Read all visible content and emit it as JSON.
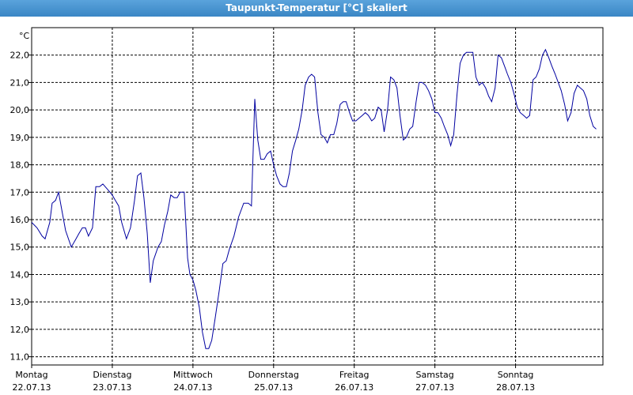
{
  "chart_data": {
    "type": "line",
    "title": "Taupunkt-Temperatur [°C] skaliert",
    "y_label": "°C",
    "xlim": [
      0,
      170
    ],
    "ylim": [
      10.7,
      23.0
    ],
    "xticks": [
      {
        "value": 0,
        "label": "Montag"
      },
      {
        "value": 24,
        "label": "Dienstag"
      },
      {
        "value": 48,
        "label": "Mittwoch"
      },
      {
        "value": 72,
        "label": "Donnerstag"
      },
      {
        "value": 96,
        "label": "Freitag"
      },
      {
        "value": 120,
        "label": "Samstag"
      },
      {
        "value": 144,
        "label": "Sonntag"
      }
    ],
    "xtick_dates": [
      "22.07.13",
      "23.07.13",
      "24.07.13",
      "25.07.13",
      "26.07.13",
      "27.07.13",
      "28.07.13"
    ],
    "yticks": [
      {
        "value": 11,
        "label": "11,0"
      },
      {
        "value": 12,
        "label": "12,0"
      },
      {
        "value": 13,
        "label": "13,0"
      },
      {
        "value": 14,
        "label": "14,0"
      },
      {
        "value": 15,
        "label": "15,0"
      },
      {
        "value": 16,
        "label": "16,0"
      },
      {
        "value": 17,
        "label": "17,0"
      },
      {
        "value": 18,
        "label": "18,0"
      },
      {
        "value": 19,
        "label": "19,0"
      },
      {
        "value": 20,
        "label": "20,0"
      },
      {
        "value": 21,
        "label": "21,0"
      },
      {
        "value": 22,
        "label": "22,0"
      }
    ],
    "grid": true,
    "x": [
      0,
      1.6,
      3.1,
      4.0,
      5.4,
      6.1,
      7.1,
      8.0,
      8.9,
      10.1,
      11.8,
      13.2,
      14.1,
      15.1,
      16.0,
      16.9,
      18.1,
      19.1,
      20.2,
      21.2,
      22.6,
      24.0,
      24.9,
      25.9,
      26.8,
      28.2,
      29.4,
      30.6,
      31.5,
      32.5,
      33.4,
      34.4,
      35.3,
      36.2,
      37.6,
      38.6,
      39.5,
      40.5,
      41.4,
      42.4,
      43.3,
      44.2,
      45.4,
      46.4,
      47.1,
      48.0,
      48.9,
      49.9,
      50.8,
      51.8,
      52.7,
      53.6,
      54.6,
      55.8,
      56.9,
      57.9,
      58.8,
      60.2,
      61.6,
      63.1,
      64.5,
      65.4,
      66.4,
      67.3,
      68.2,
      69.2,
      70.1,
      71.1,
      72.0,
      72.9,
      73.9,
      74.8,
      75.8,
      76.7,
      77.6,
      78.6,
      79.5,
      80.5,
      81.4,
      82.4,
      83.3,
      84.2,
      85.2,
      86.1,
      87.1,
      88.0,
      88.9,
      89.9,
      90.8,
      91.8,
      92.7,
      93.6,
      94.6,
      95.5,
      96.5,
      97.4,
      98.4,
      99.3,
      100.2,
      101.2,
      102.1,
      103.1,
      104.0,
      104.9,
      105.9,
      106.8,
      107.8,
      108.7,
      109.6,
      110.6,
      111.5,
      112.5,
      113.4,
      114.4,
      115.3,
      116.2,
      117.2,
      118.1,
      119.1,
      120.0,
      120.9,
      121.9,
      122.8,
      123.8,
      124.7,
      125.6,
      126.6,
      127.5,
      128.5,
      129.4,
      130.4,
      131.3,
      132.2,
      133.2,
      134.1,
      135.1,
      136.0,
      136.9,
      137.9,
      138.8,
      139.8,
      140.7,
      141.6,
      142.6,
      143.5,
      144.5,
      145.4,
      146.4,
      147.3,
      148.2,
      149.2,
      150.1,
      151.1,
      152.0,
      152.9,
      153.9,
      154.8,
      155.8,
      156.7,
      157.6,
      158.6,
      159.5,
      160.5,
      161.4,
      162.4,
      163.3,
      164.2,
      165.2,
      166.1,
      167.1,
      168.0
    ],
    "series": [
      {
        "name": "Taupunkt-Temperatur",
        "color": "#0000a0",
        "values": [
          15.9,
          15.7,
          15.4,
          15.3,
          15.9,
          16.6,
          16.7,
          17.0,
          16.4,
          15.6,
          15.0,
          15.3,
          15.5,
          15.7,
          15.7,
          15.4,
          15.7,
          17.2,
          17.2,
          17.3,
          17.1,
          16.9,
          16.7,
          16.5,
          15.9,
          15.3,
          15.7,
          16.7,
          17.6,
          17.7,
          16.8,
          15.5,
          13.7,
          14.5,
          15.0,
          15.2,
          15.8,
          16.3,
          16.9,
          16.8,
          16.8,
          17.0,
          17.0,
          14.6,
          14.0,
          13.8,
          13.4,
          12.8,
          11.9,
          11.3,
          11.3,
          11.6,
          12.4,
          13.4,
          14.4,
          14.5,
          14.9,
          15.4,
          16.1,
          16.6,
          16.6,
          16.5,
          20.4,
          18.9,
          18.2,
          18.2,
          18.4,
          18.5,
          18.0,
          17.6,
          17.3,
          17.2,
          17.2,
          17.7,
          18.5,
          18.9,
          19.3,
          20.0,
          20.9,
          21.2,
          21.3,
          21.2,
          19.9,
          19.1,
          19.0,
          18.8,
          19.1,
          19.1,
          19.5,
          20.2,
          20.3,
          20.3,
          19.9,
          19.6,
          19.6,
          19.7,
          19.8,
          19.9,
          19.8,
          19.6,
          19.7,
          20.1,
          20.0,
          19.2,
          20.0,
          21.2,
          21.1,
          20.8,
          19.8,
          18.9,
          19.0,
          19.3,
          19.4,
          20.3,
          21.0,
          21.0,
          20.9,
          20.7,
          20.4,
          19.9,
          19.9,
          19.7,
          19.4,
          19.1,
          18.7,
          19.1,
          20.6,
          21.7,
          22.0,
          22.1,
          22.1,
          22.1,
          21.2,
          20.9,
          21.0,
          20.8,
          20.5,
          20.3,
          20.8,
          22.0,
          21.9,
          21.6,
          21.3,
          21.0,
          20.6,
          20.1,
          19.9,
          19.8,
          19.7,
          19.8,
          21.1,
          21.2,
          21.5,
          22.0,
          22.2,
          21.9,
          21.6,
          21.3,
          21.0,
          20.7,
          20.2,
          19.6,
          19.9,
          20.6,
          20.9,
          20.8,
          20.7,
          20.4,
          19.8,
          19.4,
          19.3
        ]
      }
    ]
  }
}
